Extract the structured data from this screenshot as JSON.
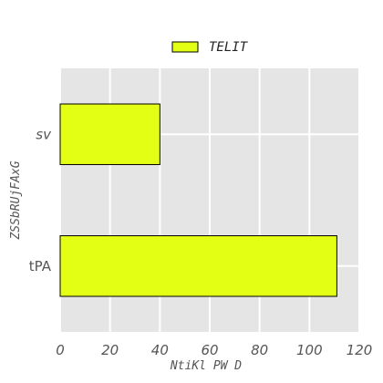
{
  "chart_data": {
    "type": "bar",
    "orientation": "horizontal",
    "categories": [
      "tPA",
      "sv"
    ],
    "series": [
      {
        "name": "TELIT",
        "values": [
          111,
          40
        ],
        "color": "#e3ff14"
      }
    ],
    "xlabel": "NtiKl  PW D",
    "ylabel": "ZSSbRUjFAxG",
    "xlim": [
      0,
      120
    ],
    "xticks": [
      "0",
      "20",
      "40",
      "60",
      "80",
      "100",
      "120"
    ],
    "grid": true,
    "legend": "top-center",
    "colors": {
      "background": "#e5e5e5",
      "grid": "#ffffff",
      "bar_edge": "#000000"
    }
  }
}
